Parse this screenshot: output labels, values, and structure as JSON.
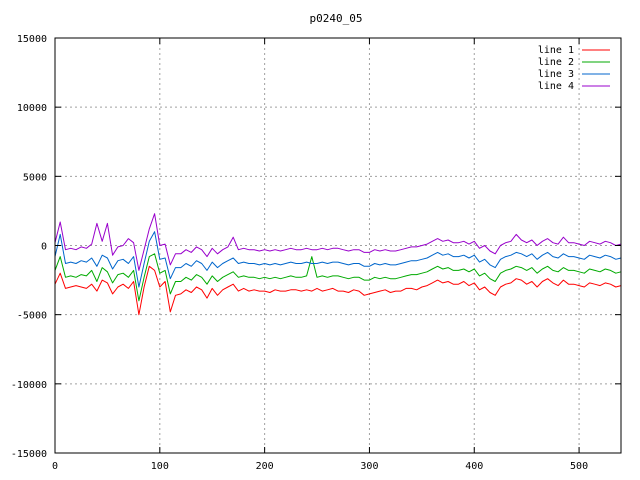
{
  "chart_data": {
    "type": "line",
    "title": "p0240_05",
    "xlabel": "",
    "ylabel": "",
    "xlim": [
      0,
      540
    ],
    "ylim": [
      -15000,
      15000
    ],
    "xticks": [
      0,
      100,
      200,
      300,
      400,
      500
    ],
    "yticks": [
      -15000,
      -10000,
      -5000,
      0,
      5000,
      10000,
      15000
    ],
    "xtick_labels": [
      "0",
      "100",
      "200",
      "300",
      "400",
      "500"
    ],
    "ytick_labels": [
      "-15000",
      "-10000",
      "-5000",
      "0",
      "5000",
      "10000",
      "15000"
    ],
    "grid": true,
    "legend_position": "top-right",
    "x": [
      0,
      5,
      10,
      15,
      20,
      25,
      30,
      35,
      40,
      45,
      50,
      55,
      60,
      65,
      70,
      75,
      80,
      85,
      90,
      95,
      100,
      105,
      110,
      115,
      120,
      125,
      130,
      135,
      140,
      145,
      150,
      155,
      160,
      165,
      170,
      175,
      180,
      185,
      190,
      195,
      200,
      205,
      210,
      215,
      220,
      225,
      230,
      235,
      240,
      245,
      250,
      255,
      260,
      265,
      270,
      275,
      280,
      285,
      290,
      295,
      300,
      305,
      310,
      315,
      320,
      325,
      330,
      335,
      340,
      345,
      350,
      355,
      360,
      365,
      370,
      375,
      380,
      385,
      390,
      395,
      400,
      405,
      410,
      415,
      420,
      425,
      430,
      435,
      440,
      445,
      450,
      455,
      460,
      465,
      470,
      475,
      480,
      485,
      490,
      495,
      500,
      505,
      510,
      515,
      520,
      525,
      530,
      535,
      540
    ],
    "series": [
      {
        "name": "line 1",
        "color": "#ff0000",
        "values": [
          -2800,
          -2000,
          -3100,
          -3000,
          -2900,
          -3000,
          -3100,
          -2800,
          -3300,
          -2500,
          -2700,
          -3500,
          -3000,
          -2800,
          -3100,
          -2600,
          -5000,
          -3000,
          -1500,
          -1800,
          -3000,
          -2600,
          -4800,
          -3600,
          -3500,
          -3200,
          -3400,
          -3000,
          -3200,
          -3800,
          -3100,
          -3600,
          -3200,
          -3000,
          -2800,
          -3300,
          -3100,
          -3300,
          -3200,
          -3300,
          -3300,
          -3400,
          -3200,
          -3300,
          -3300,
          -3200,
          -3200,
          -3300,
          -3200,
          -3300,
          -3100,
          -3300,
          -3200,
          -3100,
          -3300,
          -3300,
          -3400,
          -3200,
          -3300,
          -3600,
          -3500,
          -3400,
          -3300,
          -3200,
          -3400,
          -3300,
          -3300,
          -3100,
          -3100,
          -3200,
          -3000,
          -2900,
          -2700,
          -2500,
          -2700,
          -2600,
          -2800,
          -2800,
          -2600,
          -2900,
          -2700,
          -3200,
          -3000,
          -3400,
          -3600,
          -3000,
          -2800,
          -2700,
          -2400,
          -2500,
          -2800,
          -2600,
          -3000,
          -2600,
          -2400,
          -2700,
          -2900,
          -2500,
          -2800,
          -2800,
          -2900,
          -3000,
          -2700,
          -2800,
          -2900,
          -2700,
          -2800,
          -3000,
          -2900
        ]
      },
      {
        "name": "line 2",
        "color": "#00aa00",
        "values": [
          -1800,
          -800,
          -2300,
          -2200,
          -2300,
          -2100,
          -2200,
          -1800,
          -2600,
          -1600,
          -1900,
          -2700,
          -2100,
          -2000,
          -2300,
          -1800,
          -4000,
          -2300,
          -800,
          -600,
          -2000,
          -1800,
          -3500,
          -2600,
          -2600,
          -2300,
          -2500,
          -2100,
          -2300,
          -2800,
          -2200,
          -2600,
          -2300,
          -2100,
          -1900,
          -2300,
          -2200,
          -2300,
          -2300,
          -2400,
          -2300,
          -2400,
          -2300,
          -2400,
          -2300,
          -2200,
          -2300,
          -2300,
          -2200,
          -800,
          -2300,
          -2200,
          -2300,
          -2200,
          -2200,
          -2300,
          -2400,
          -2300,
          -2300,
          -2500,
          -2500,
          -2300,
          -2400,
          -2300,
          -2400,
          -2400,
          -2300,
          -2200,
          -2100,
          -2100,
          -2000,
          -1900,
          -1700,
          -1500,
          -1700,
          -1600,
          -1800,
          -1800,
          -1700,
          -1900,
          -1700,
          -2200,
          -2000,
          -2400,
          -2600,
          -2000,
          -1800,
          -1700,
          -1500,
          -1600,
          -1800,
          -1600,
          -2000,
          -1700,
          -1500,
          -1800,
          -1900,
          -1600,
          -1800,
          -1800,
          -1900,
          -2000,
          -1700,
          -1800,
          -1900,
          -1700,
          -1800,
          -2000,
          -1900
        ]
      },
      {
        "name": "line 3",
        "color": "#0066cc",
        "values": [
          -800,
          800,
          -1300,
          -1200,
          -1300,
          -1100,
          -1200,
          -900,
          -1500,
          -700,
          -900,
          -1700,
          -1100,
          -1000,
          -1300,
          -800,
          -3000,
          -1300,
          300,
          1000,
          -1000,
          -900,
          -2400,
          -1600,
          -1600,
          -1300,
          -1500,
          -1100,
          -1300,
          -1800,
          -1200,
          -1600,
          -1300,
          -1100,
          -900,
          -1300,
          -1200,
          -1300,
          -1300,
          -1400,
          -1300,
          -1400,
          -1300,
          -1400,
          -1300,
          -1200,
          -1300,
          -1300,
          -1200,
          -1300,
          -1300,
          -1200,
          -1300,
          -1200,
          -1200,
          -1300,
          -1400,
          -1300,
          -1300,
          -1500,
          -1500,
          -1300,
          -1400,
          -1300,
          -1400,
          -1400,
          -1300,
          -1200,
          -1100,
          -1100,
          -1000,
          -900,
          -700,
          -500,
          -700,
          -600,
          -800,
          -800,
          -700,
          -900,
          -700,
          -1200,
          -1000,
          -1400,
          -1600,
          -1000,
          -800,
          -700,
          -500,
          -600,
          -800,
          -600,
          -1000,
          -700,
          -500,
          -800,
          -900,
          -600,
          -800,
          -800,
          -900,
          -1000,
          -700,
          -800,
          -900,
          -700,
          -800,
          -1000,
          -900
        ]
      },
      {
        "name": "line 4",
        "color": "#9900cc",
        "values": [
          200,
          1700,
          -300,
          -200,
          -300,
          -100,
          -200,
          100,
          1600,
          300,
          1600,
          -700,
          -100,
          0,
          500,
          200,
          -1800,
          -300,
          1200,
          2300,
          0,
          100,
          -1400,
          -600,
          -600,
          -300,
          -500,
          -100,
          -300,
          -800,
          -200,
          -600,
          -300,
          -100,
          600,
          -300,
          -200,
          -300,
          -300,
          -400,
          -300,
          -400,
          -300,
          -400,
          -300,
          -200,
          -300,
          -300,
          -200,
          -300,
          -300,
          -200,
          -300,
          -200,
          -200,
          -300,
          -400,
          -300,
          -300,
          -500,
          -500,
          -300,
          -400,
          -300,
          -400,
          -400,
          -300,
          -200,
          -100,
          -100,
          0,
          100,
          300,
          500,
          300,
          400,
          200,
          200,
          300,
          100,
          300,
          -200,
          0,
          -400,
          -600,
          0,
          200,
          300,
          800,
          400,
          200,
          400,
          0,
          300,
          500,
          200,
          100,
          600,
          200,
          200,
          100,
          0,
          300,
          200,
          100,
          300,
          200,
          0,
          100
        ]
      }
    ]
  }
}
